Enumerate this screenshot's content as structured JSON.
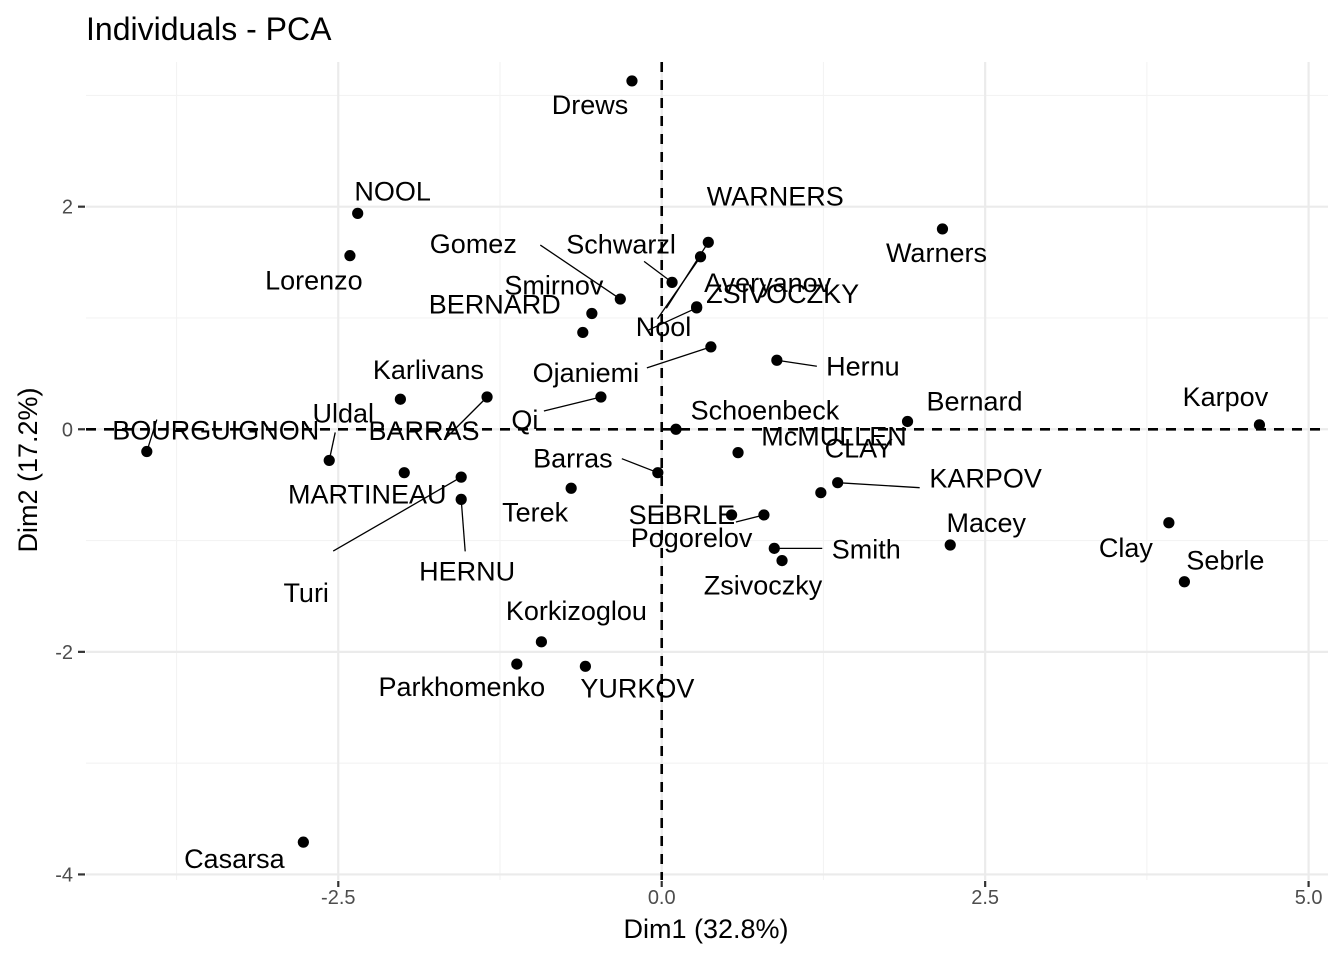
{
  "chart_data": {
    "type": "scatter",
    "title": "Individuals - PCA",
    "xlabel": "Dim1 (32.8%)",
    "ylabel": "Dim2 (17.2%)",
    "xlim": [
      -4.45,
      5.15
    ],
    "ylim": [
      -4.05,
      3.3
    ],
    "xticks": [
      -2.5,
      0.0,
      2.5,
      5.0
    ],
    "xtick_labels": [
      "-2.5",
      "0.0",
      "2.5",
      "5.0"
    ],
    "yticks": [
      -4,
      -2,
      0,
      2
    ],
    "ytick_labels": [
      "-4",
      "-2",
      "0",
      "2"
    ],
    "x_minor": [
      -3.75,
      -1.25,
      1.25,
      3.75
    ],
    "y_minor": [
      -3,
      -1,
      1,
      3
    ],
    "grid": true,
    "reference_lines": {
      "x": 0,
      "y": 0
    },
    "points": [
      {
        "label": "SEBRLE",
        "x": 0.79,
        "y": -0.77
      },
      {
        "label": "CLAY",
        "x": 1.23,
        "y": -0.57
      },
      {
        "label": "KARPOV",
        "x": 1.36,
        "y": -0.48
      },
      {
        "label": "BERNARD",
        "x": -0.61,
        "y": 0.87
      },
      {
        "label": "YURKOV",
        "x": -0.59,
        "y": -2.13
      },
      {
        "label": "WARNERS",
        "x": 0.36,
        "y": 1.68
      },
      {
        "label": "ZSIVOCZKY",
        "x": 0.27,
        "y": 1.09
      },
      {
        "label": "McMULLEN",
        "x": 0.59,
        "y": -0.21
      },
      {
        "label": "MARTINEAU",
        "x": -1.99,
        "y": -0.39
      },
      {
        "label": "HERNU",
        "x": -1.55,
        "y": -0.63
      },
      {
        "label": "BARRAS",
        "x": -1.35,
        "y": 0.29
      },
      {
        "label": "NOOL",
        "x": -2.35,
        "y": 1.94
      },
      {
        "label": "BOURGUIGNON",
        "x": -3.98,
        "y": -0.2
      },
      {
        "label": "Sebrle",
        "x": 4.04,
        "y": -1.37
      },
      {
        "label": "Clay",
        "x": 3.92,
        "y": -0.84
      },
      {
        "label": "Karpov",
        "x": 4.62,
        "y": 0.04
      },
      {
        "label": "Macey",
        "x": 2.23,
        "y": -1.04
      },
      {
        "label": "Warners",
        "x": 2.17,
        "y": 1.8
      },
      {
        "label": "Zsivoczky",
        "x": 0.93,
        "y": -1.18
      },
      {
        "label": "Hernu",
        "x": 0.89,
        "y": 0.62
      },
      {
        "label": "Nool",
        "x": 0.3,
        "y": 1.55
      },
      {
        "label": "Bernard",
        "x": 1.9,
        "y": 0.07
      },
      {
        "label": "Schwarzl",
        "x": 0.08,
        "y": 1.32
      },
      {
        "label": "Pogorelov",
        "x": 0.54,
        "y": -0.77
      },
      {
        "label": "Schoenbeck",
        "x": 0.11,
        "y": 0.0
      },
      {
        "label": "Barras",
        "x": -0.03,
        "y": -0.39
      },
      {
        "label": "Smith",
        "x": 0.87,
        "y": -1.07
      },
      {
        "label": "Averyanov",
        "x": 0.27,
        "y": 1.1
      },
      {
        "label": "Ojaniemi",
        "x": 0.38,
        "y": 0.74
      },
      {
        "label": "Smirnov",
        "x": -0.54,
        "y": 1.04
      },
      {
        "label": "Qi",
        "x": -0.47,
        "y": 0.29
      },
      {
        "label": "Drews",
        "x": -0.23,
        "y": 3.13
      },
      {
        "label": "Parkhomenko",
        "x": -1.12,
        "y": -2.11
      },
      {
        "label": "Terek",
        "x": -0.7,
        "y": -0.53
      },
      {
        "label": "Gomez",
        "x": -0.32,
        "y": 1.17
      },
      {
        "label": "Turi",
        "x": -1.55,
        "y": -0.43
      },
      {
        "label": "Lorenzo",
        "x": -2.41,
        "y": 1.56
      },
      {
        "label": "Karlivans",
        "x": -2.02,
        "y": 0.27
      },
      {
        "label": "Korkizoglou",
        "x": -0.93,
        "y": -1.91
      },
      {
        "label": "Uldal",
        "x": -2.57,
        "y": -0.28
      },
      {
        "label": "Casarsa",
        "x": -2.77,
        "y": -3.71
      }
    ]
  }
}
